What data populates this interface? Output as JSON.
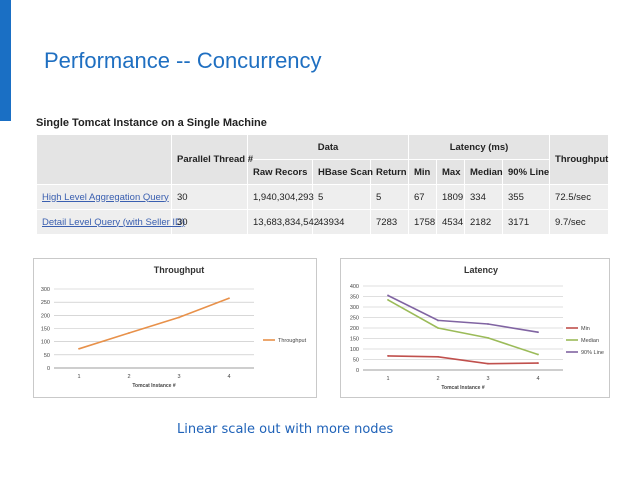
{
  "slide": {
    "title": "Performance -- Concurrency",
    "accent_color": "#1a6fc4"
  },
  "table": {
    "title": "Single Tomcat Instance on a Single Machine",
    "group_headers": {
      "parallel_thread": "Parallel Thread #",
      "data": "Data",
      "latency": "Latency (ms)",
      "throughput": "Throughput"
    },
    "sub_headers": [
      "Raw Recors",
      "HBase Scan",
      "Return",
      "Min",
      "Max",
      "Median",
      "90% Line"
    ],
    "rows": [
      {
        "name": "High Level Aggregation Query",
        "threads": "30",
        "raw": "1,940,304,293",
        "scan": "5",
        "ret": "5",
        "min": "67",
        "max": "1809",
        "median": "334",
        "p90": "355",
        "throughput": "72.5/sec"
      },
      {
        "name": "Detail Level Query (with Seller ID)",
        "threads": "30",
        "raw": "13,683,834,542",
        "scan": "43934",
        "ret": "7283",
        "min": "1758",
        "max": "4534",
        "median": "2182",
        "p90": "3171",
        "throughput": "9.7/sec"
      }
    ]
  },
  "caption": "Linear scale out with more nodes",
  "chart_data": [
    {
      "type": "line",
      "title": "Throughput",
      "xlabel": "Tomcat Instance #",
      "ylabel": "",
      "x": [
        1,
        2,
        3,
        4
      ],
      "ylim": [
        0,
        300
      ],
      "yticks": [
        0,
        50,
        100,
        150,
        200,
        250,
        300
      ],
      "grid": true,
      "legend": "right",
      "series": [
        {
          "name": "Throughput",
          "color": "#e8914a",
          "values": [
            73,
            133,
            192,
            265
          ]
        }
      ]
    },
    {
      "type": "line",
      "title": "Latency",
      "xlabel": "Tomcat Instance #",
      "ylabel": "",
      "x": [
        1,
        2,
        3,
        4
      ],
      "ylim": [
        0,
        400
      ],
      "yticks": [
        0,
        50,
        100,
        150,
        200,
        250,
        300,
        350,
        400
      ],
      "grid": true,
      "legend": "right",
      "series": [
        {
          "name": "Min",
          "color": "#c0504d",
          "values": [
            67,
            63,
            30,
            33
          ]
        },
        {
          "name": "Median",
          "color": "#9bbb59",
          "values": [
            334,
            200,
            153,
            74
          ]
        },
        {
          "name": "90% Line",
          "color": "#8064a2",
          "values": [
            355,
            236,
            219,
            180
          ]
        }
      ]
    }
  ]
}
